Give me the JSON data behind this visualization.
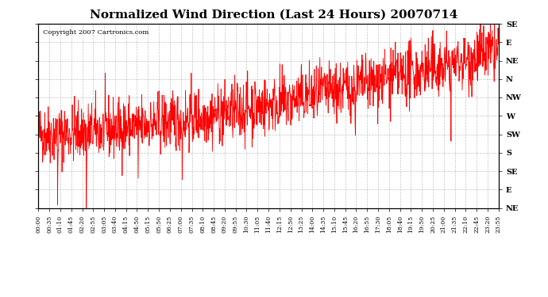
{
  "title": "Normalized Wind Direction (Last 24 Hours) 20070714",
  "copyright_text": "Copyright 2007 Cartronics.com",
  "background_color": "#ffffff",
  "plot_bg_color": "#ffffff",
  "grid_color": "#aaaaaa",
  "line_color": "#ff0000",
  "y_labels": [
    "SE",
    "E",
    "NE",
    "N",
    "NW",
    "W",
    "SW",
    "S",
    "SE",
    "E",
    "NE"
  ],
  "y_values": [
    11,
    10,
    9,
    8,
    7,
    6,
    5,
    4,
    3,
    2,
    1
  ],
  "x_tick_labels": [
    "00:00",
    "00:35",
    "01:10",
    "01:45",
    "02:20",
    "02:55",
    "03:05",
    "03:40",
    "04:15",
    "04:50",
    "05:15",
    "05:50",
    "06:25",
    "07:00",
    "07:35",
    "08:10",
    "08:45",
    "09:20",
    "09:55",
    "10:30",
    "11:05",
    "11:40",
    "12:15",
    "12:50",
    "13:25",
    "14:00",
    "14:35",
    "15:10",
    "15:45",
    "16:20",
    "16:55",
    "17:30",
    "18:05",
    "18:40",
    "19:15",
    "19:50",
    "20:25",
    "21:00",
    "21:35",
    "22:10",
    "22:45",
    "23:20",
    "23:55"
  ],
  "seed": 42
}
